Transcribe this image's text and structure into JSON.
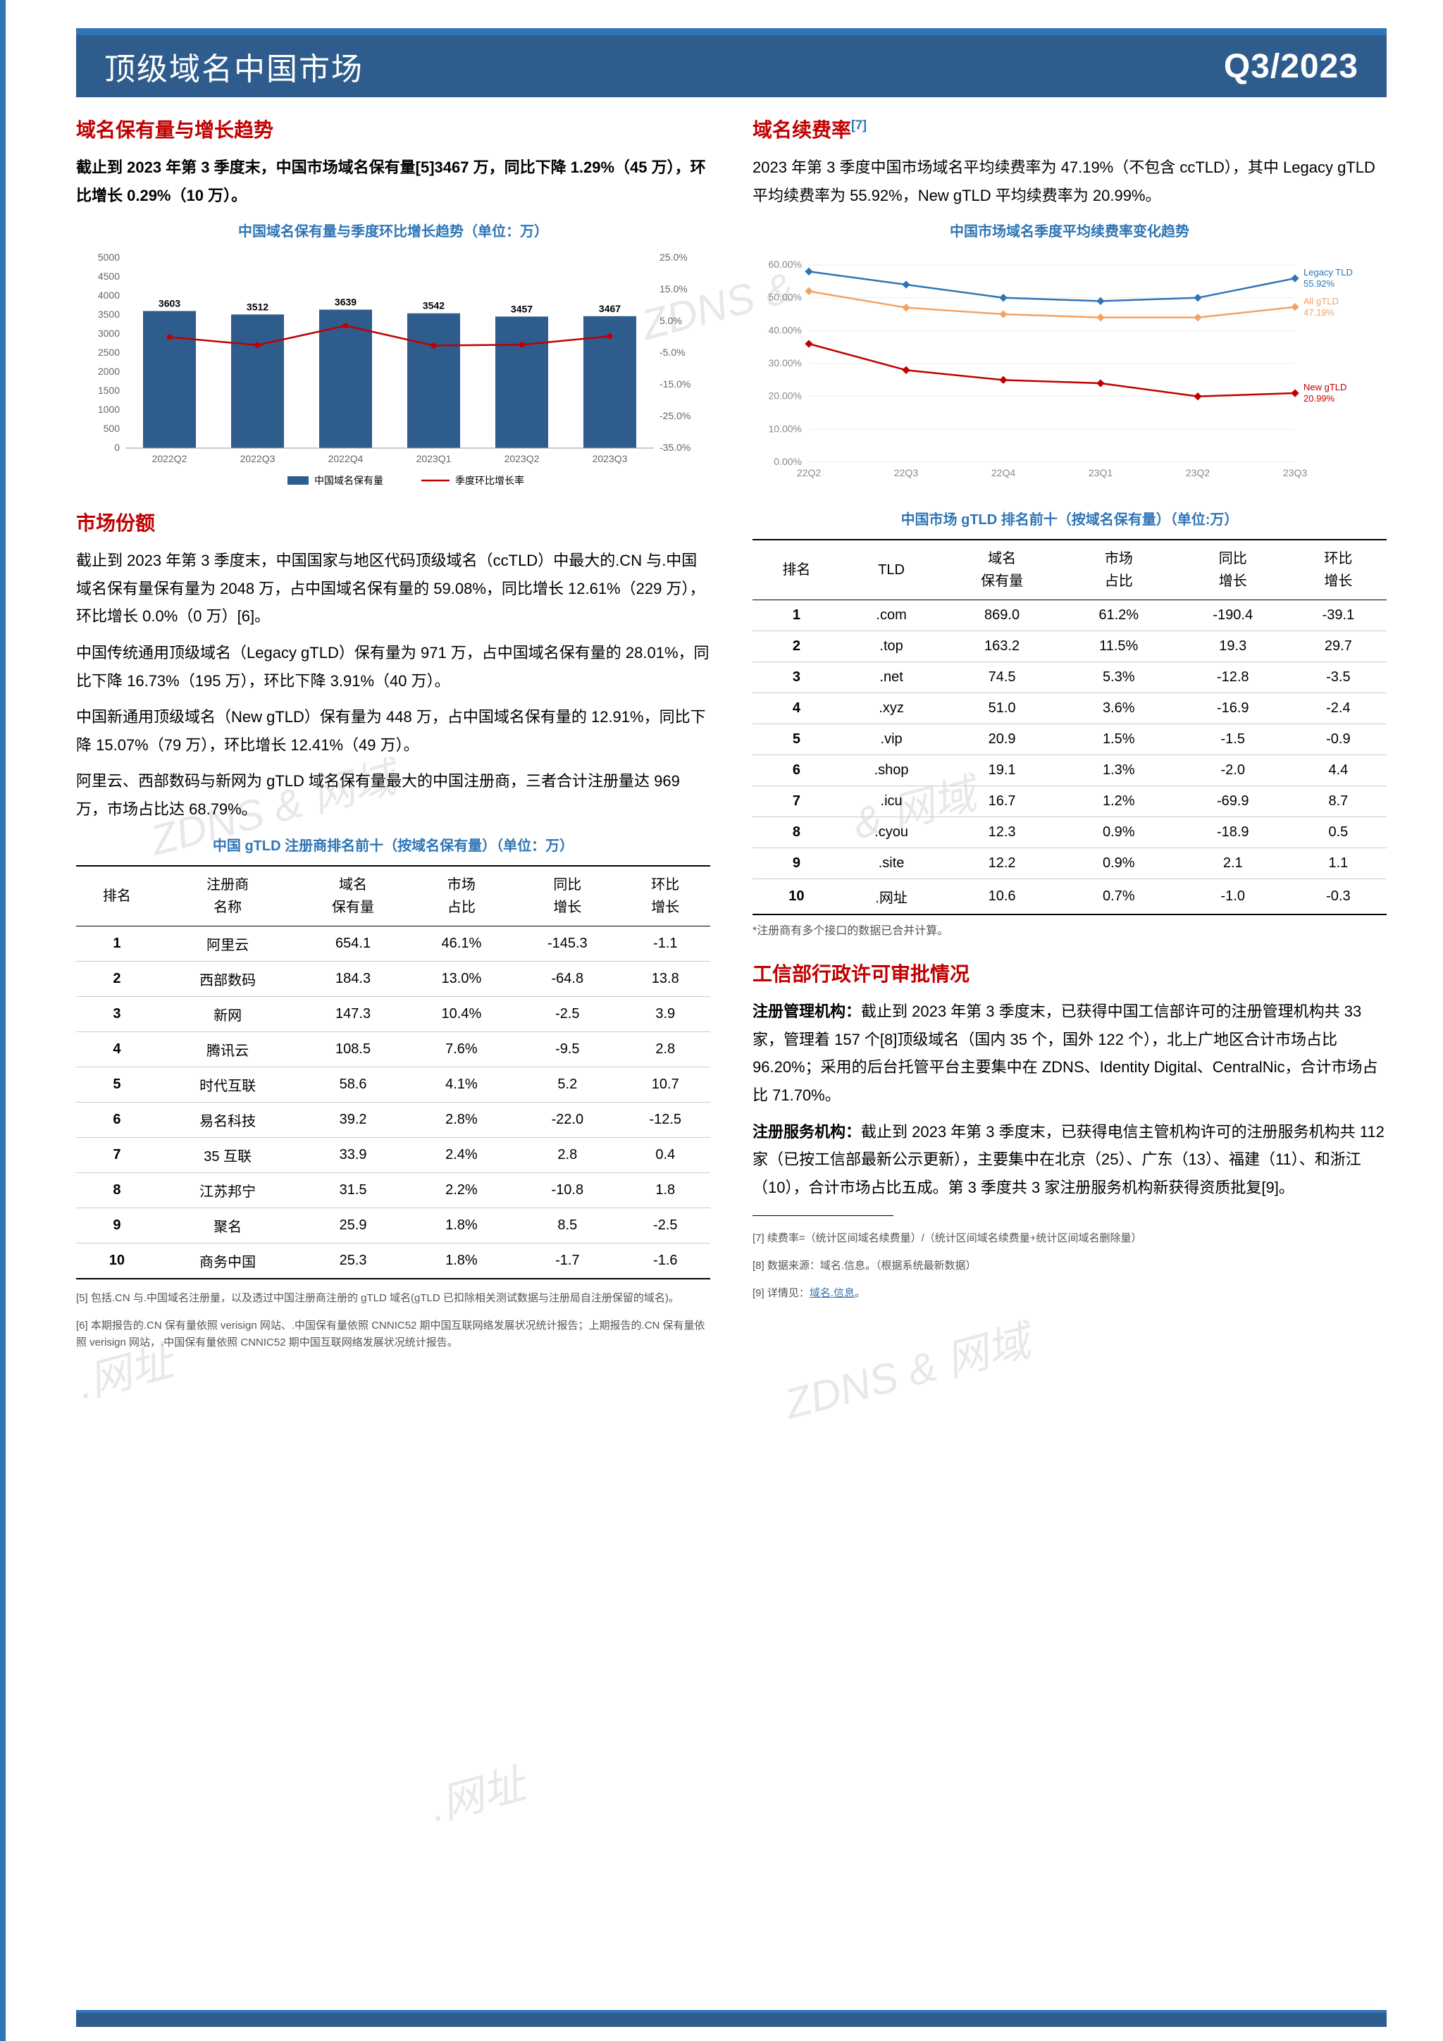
{
  "header": {
    "title": "顶级域名中国市场",
    "quarter": "Q3/2023"
  },
  "left": {
    "sec1_title": "域名保有量与增长趋势",
    "sec1_p1": "截止到 2023 年第 3 季度末，中国市场域名保有量[5]3467 万，同比下降 1.29%（45 万），环比增长 0.29%（10 万）。",
    "chart1": {
      "title": "中国域名保有量与季度环比增长趋势（单位：万）",
      "type": "combo_bar_line",
      "categories": [
        "2022Q2",
        "2022Q3",
        "2022Q4",
        "2023Q1",
        "2023Q2",
        "2023Q3"
      ],
      "bar_values": [
        3603,
        3512,
        3639,
        3542,
        3457,
        3467
      ],
      "bar_color": "#2e5c8c",
      "line_color": "#c00000",
      "y_left": {
        "max": 5000,
        "step": 500
      },
      "y_right": {
        "max": 25,
        "min": -35,
        "step": 10,
        "suffix": "%"
      },
      "legend": [
        "中国域名保有量",
        "季度环比增长率"
      ],
      "background": "#ffffff",
      "font_size": 14
    },
    "sec2_title": "市场份额",
    "sec2_p1": "截止到 2023 年第 3 季度末，中国国家与地区代码顶级域名（ccTLD）中最大的.CN 与.中国域名保有量保有量为 2048 万，占中国域名保有量的 59.08%，同比增长 12.61%（229 万），环比增长 0.0%（0 万）[6]。",
    "sec2_p2": "中国传统通用顶级域名（Legacy gTLD）保有量为 971 万，占中国域名保有量的 28.01%，同比下降 16.73%（195 万），环比下降 3.91%（40 万）。",
    "sec2_p3": "中国新通用顶级域名（New gTLD）保有量为 448 万，占中国域名保有量的 12.91%，同比下降 15.07%（79 万），环比增长 12.41%（49 万）。",
    "sec2_p4": "阿里云、西部数码与新网为 gTLD 域名保有量最大的中国注册商，三者合计注册量达 969 万，市场占比达 68.79%。",
    "table1": {
      "title": "中国 gTLD 注册商排名前十（按域名保有量）（单位：万）",
      "columns": [
        "排名",
        "注册商\n名称",
        "域名\n保有量",
        "市场\n占比",
        "同比\n增长",
        "环比\n增长"
      ],
      "rows": [
        [
          "1",
          "阿里云",
          "654.1",
          "46.1%",
          "-145.3",
          "-1.1"
        ],
        [
          "2",
          "西部数码",
          "184.3",
          "13.0%",
          "-64.8",
          "13.8"
        ],
        [
          "3",
          "新网",
          "147.3",
          "10.4%",
          "-2.5",
          "3.9"
        ],
        [
          "4",
          "腾讯云",
          "108.5",
          "7.6%",
          "-9.5",
          "2.8"
        ],
        [
          "5",
          "时代互联",
          "58.6",
          "4.1%",
          "5.2",
          "10.7"
        ],
        [
          "6",
          "易名科技",
          "39.2",
          "2.8%",
          "-22.0",
          "-12.5"
        ],
        [
          "7",
          "35 互联",
          "33.9",
          "2.4%",
          "2.8",
          "0.4"
        ],
        [
          "8",
          "江苏邦宁",
          "31.5",
          "2.2%",
          "-10.8",
          "1.8"
        ],
        [
          "9",
          "聚名",
          "25.9",
          "1.8%",
          "8.5",
          "-2.5"
        ],
        [
          "10",
          "商务中国",
          "25.3",
          "1.8%",
          "-1.7",
          "-1.6"
        ]
      ]
    },
    "footnote5": "[5] 包括.CN 与.中国域名注册量，以及透过中国注册商注册的 gTLD 域名(gTLD 已扣除相关测试数据与注册局自注册保留的域名)。",
    "footnote6": "[6] 本期报告的.CN 保有量依照 verisign 网站、.中国保有量依照 CNNIC52 期中国互联网络发展状况统计报告；上期报告的.CN 保有量依照 verisign 网站，.中国保有量依照 CNNIC52 期中国互联网络发展状况统计报告。"
  },
  "right": {
    "sec1_title": "域名续费率",
    "sec1_sup": "[7]",
    "sec1_p1": "2023 年第 3 季度中国市场域名平均续费率为 47.19%（不包含 ccTLD），其中 Legacy gTLD 平均续费率为 55.92%，New gTLD 平均续费率为 20.99%。",
    "chart2": {
      "title": "中国市场域名季度平均续费率变化趋势",
      "type": "multi_line",
      "categories": [
        "22Q2",
        "22Q3",
        "22Q4",
        "23Q1",
        "23Q2",
        "23Q3"
      ],
      "series": [
        {
          "name": "Legacy TLD",
          "color": "#2e75b6",
          "end_label": "Legacy TLD\n55.92%",
          "values": [
            58,
            54,
            50,
            49,
            50,
            55.92
          ]
        },
        {
          "name": "All gTLD",
          "color": "#f4a261",
          "end_label": "All gTLD\n47.19%",
          "values": [
            52,
            47,
            45,
            44,
            44,
            47.19
          ]
        },
        {
          "name": "New gTLD",
          "color": "#c00000",
          "end_label": "New gTLD\n20.99%",
          "values": [
            36,
            28,
            25,
            24,
            20,
            20.99
          ]
        }
      ],
      "y": {
        "min": 0,
        "max": 60,
        "step": 10,
        "suffix": "%"
      },
      "background": "#ffffff",
      "grid_color": "#eeeeee",
      "font_size": 14
    },
    "table2": {
      "title": "中国市场 gTLD 排名前十（按域名保有量）（单位:万）",
      "columns": [
        "排名",
        "TLD",
        "域名\n保有量",
        "市场\n占比",
        "同比\n增长",
        "环比\n增长"
      ],
      "rows": [
        [
          "1",
          ".com",
          "869.0",
          "61.2%",
          "-190.4",
          "-39.1"
        ],
        [
          "2",
          ".top",
          "163.2",
          "11.5%",
          "19.3",
          "29.7"
        ],
        [
          "3",
          ".net",
          "74.5",
          "5.3%",
          "-12.8",
          "-3.5"
        ],
        [
          "4",
          ".xyz",
          "51.0",
          "3.6%",
          "-16.9",
          "-2.4"
        ],
        [
          "5",
          ".vip",
          "20.9",
          "1.5%",
          "-1.5",
          "-0.9"
        ],
        [
          "6",
          ".shop",
          "19.1",
          "1.3%",
          "-2.0",
          "4.4"
        ],
        [
          "7",
          ".icu",
          "16.7",
          "1.2%",
          "-69.9",
          "8.7"
        ],
        [
          "8",
          ".cyou",
          "12.3",
          "0.9%",
          "-18.9",
          "0.5"
        ],
        [
          "9",
          ".site",
          "12.2",
          "0.9%",
          "2.1",
          "1.1"
        ],
        [
          "10",
          ".网址",
          "10.6",
          "0.7%",
          "-1.0",
          "-0.3"
        ]
      ],
      "note": "*注册商有多个接口的数据已合并计算。"
    },
    "sec2_title": "工信部行政许可审批情况",
    "sec2_p1a": "注册管理机构：",
    "sec2_p1b": "截止到 2023 年第 3 季度末，已获得中国工信部许可的注册管理机构共 33 家，管理着 157 个[8]顶级域名（国内 35 个，国外 122 个），北上广地区合计市场占比 96.20%；采用的后台托管平台主要集中在 ZDNS、Identity Digital、CentralNic，合计市场占比 71.70%。",
    "sec2_p2a": "注册服务机构：",
    "sec2_p2b": "截止到 2023 年第 3 季度末，已获得电信主管机构许可的注册服务机构共 112 家（已按工信部最新公示更新），主要集中在北京（25）、广东（13）、福建（11）、和浙江（10），合计市场占比五成。第 3 季度共 3 家注册服务机构新获得资质批复[9]。",
    "footnote7": "[7] 续费率=（统计区间域名续费量）/（统计区间域名续费量+统计区间域名删除量）",
    "footnote8": "[8] 数据来源：域名.信息。（根据系统最新数据）",
    "footnote9": "[9] 详情见：",
    "footnote9_link": "域名.信息"
  }
}
